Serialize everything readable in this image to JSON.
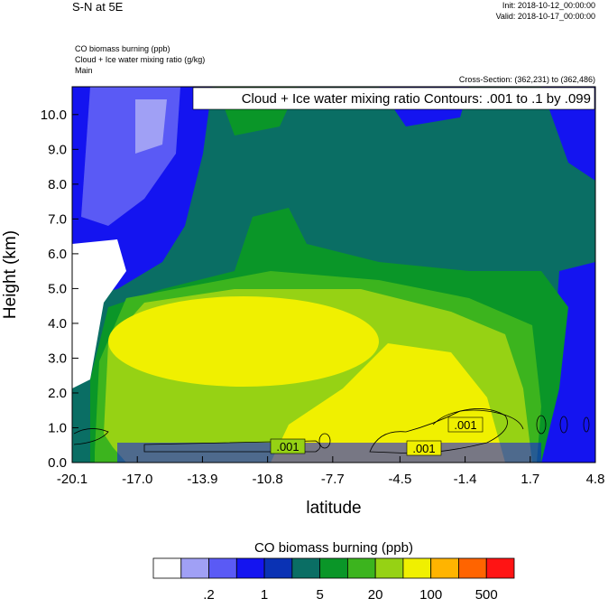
{
  "chart_data": {
    "type": "contour",
    "title": "S-N at 5E",
    "init": "Init: 2018-10-12_00:00:00",
    "valid": "Valid: 2018-10-17_00:00:00",
    "fields": [
      "CO biomass burning   (ppb)",
      "Cloud + Ice water mixing ratio   (g/kg)",
      "Main"
    ],
    "cross_section": "Cross-Section: (362,231) to (362,486)",
    "contour_note": "Cloud + Ice water mixing ratio Contours: .001 to .1 by .099",
    "contour_labels": [
      ".001",
      ".001",
      ".001"
    ],
    "x_label": "latitude",
    "y_label": "Height (km)",
    "xlim": [
      -20.1,
      4.8
    ],
    "xticks": [
      -20.1,
      {
        "value": -17,
        "label": "-17.0"
      },
      -13.9,
      -10.8,
      -7.7,
      -4.5,
      -1.4,
      1.7,
      4.8
    ],
    "ylim": [
      0,
      10.8
    ],
    "yticks": [
      {
        "value": 0,
        "label": "0.0"
      },
      {
        "value": 1,
        "label": "1.0"
      },
      {
        "value": 2,
        "label": "2.0"
      },
      {
        "value": 3,
        "label": "3.0"
      },
      {
        "value": 4,
        "label": "4.0"
      },
      {
        "value": 5,
        "label": "5.0"
      },
      {
        "value": 6,
        "label": "6.0"
      },
      {
        "value": 7,
        "label": "7.0"
      },
      {
        "value": 8,
        "label": "8.0"
      },
      {
        "value": 9,
        "label": "9.0"
      },
      {
        "value": 10,
        "label": "10.0"
      }
    ],
    "colorbar": {
      "title": "CO biomass burning  (ppb)",
      "colors": [
        "#ffffff",
        "#a0a0f5",
        "#5a5af5",
        "#1414f0",
        "#0a32b4",
        "#0a6e64",
        "#0a9628",
        "#3cb41e",
        "#96d214",
        "#f0f000",
        "#ffb400",
        "#ff6400",
        "#ff1414"
      ],
      "levels": [
        null,
        {
          "value": 0.2,
          "label": ".2"
        },
        null,
        1,
        null,
        5,
        null,
        20,
        null,
        100,
        null,
        500
      ]
    }
  }
}
